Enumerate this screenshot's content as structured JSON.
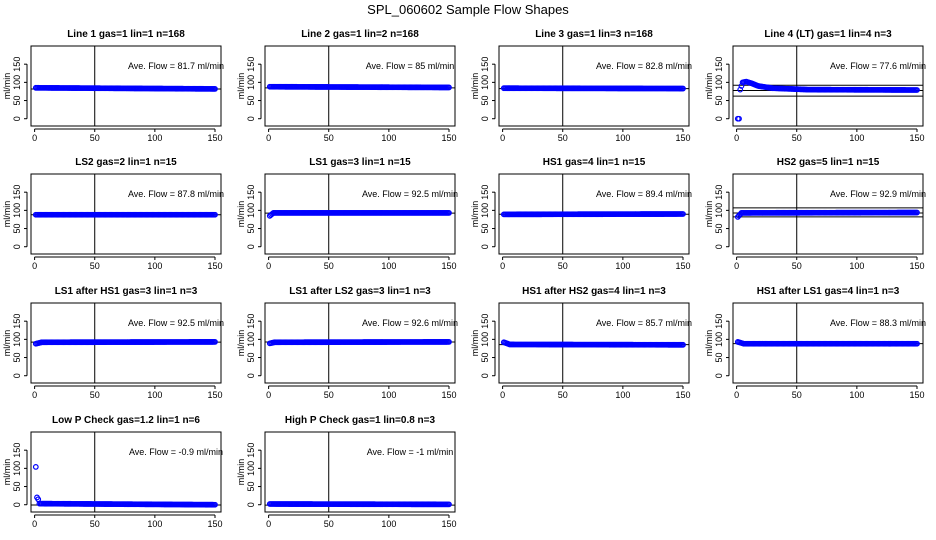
{
  "figure_title": "SPL_060602  Sample Flow Shapes",
  "chart_data": [
    {
      "type": "scatter",
      "title": "Line 1 gas=1 lin=1 n=168",
      "annotation": "Ave. Flow =  81.7  ml/min",
      "ylabel": "ml/min",
      "xlim": [
        -3,
        155
      ],
      "ylim": [
        -20,
        200
      ],
      "xticks": [
        0,
        50,
        100,
        150
      ],
      "yticks": [
        0,
        50,
        100,
        150
      ],
      "mean": 81.7,
      "vline": 50,
      "series": [
        {
          "x_range": [
            1,
            150
          ],
          "y": [
            [
              1,
              85
            ],
            [
              150,
              82
            ]
          ]
        }
      ]
    },
    {
      "type": "scatter",
      "title": "Line 2 gas=1 lin=2 n=168",
      "annotation": "Ave. Flow =  85  ml/min",
      "ylabel": "ml/min",
      "xlim": [
        -3,
        155
      ],
      "ylim": [
        -20,
        200
      ],
      "xticks": [
        0,
        50,
        100,
        150
      ],
      "yticks": [
        0,
        50,
        100,
        150
      ],
      "mean": 85,
      "vline": 50,
      "series": [
        {
          "x_range": [
            1,
            150
          ],
          "y": [
            [
              1,
              88
            ],
            [
              150,
              86
            ]
          ]
        }
      ]
    },
    {
      "type": "scatter",
      "title": "Line 3 gas=1 lin=3 n=168",
      "annotation": "Ave. Flow =  82.8  ml/min",
      "ylabel": "ml/min",
      "xlim": [
        -3,
        155
      ],
      "ylim": [
        -20,
        200
      ],
      "xticks": [
        0,
        50,
        100,
        150
      ],
      "yticks": [
        0,
        50,
        100,
        150
      ],
      "mean": 82.8,
      "vline": 50,
      "series": [
        {
          "x_range": [
            1,
            150
          ],
          "y": [
            [
              1,
              84
            ],
            [
              150,
              83
            ]
          ]
        }
      ]
    },
    {
      "type": "scatter",
      "title": "Line 4 (LT) gas=1 lin=4 n=3",
      "annotation": "Ave. Flow =  77.6  ml/min",
      "ylabel": "ml/min",
      "xlim": [
        -3,
        155
      ],
      "ylim": [
        -20,
        200
      ],
      "xticks": [
        0,
        50,
        100,
        150
      ],
      "yticks": [
        0,
        50,
        100,
        150
      ],
      "mean": 77.6,
      "vline": 50,
      "hlines": [
        62,
        92
      ],
      "series": [
        {
          "x_range": [
            1,
            150
          ],
          "y": [
            [
              1,
              0
            ],
            [
              2,
              0
            ],
            [
              3,
              80
            ],
            [
              5,
              100
            ],
            [
              8,
              102
            ],
            [
              12,
              98
            ],
            [
              18,
              90
            ],
            [
              30,
              84
            ],
            [
              60,
              80
            ],
            [
              150,
              79
            ]
          ]
        }
      ]
    },
    {
      "type": "scatter",
      "title": "LS2 gas=2 lin=1 n=15",
      "annotation": "Ave. Flow =  87.8  ml/min",
      "ylabel": "ml/min",
      "xlim": [
        -3,
        155
      ],
      "ylim": [
        -20,
        200
      ],
      "xticks": [
        0,
        50,
        100,
        150
      ],
      "yticks": [
        0,
        50,
        100,
        150
      ],
      "mean": 87.8,
      "vline": 50,
      "series": [
        {
          "x_range": [
            1,
            150
          ],
          "y": [
            [
              1,
              88
            ],
            [
              150,
              88
            ]
          ]
        }
      ]
    },
    {
      "type": "scatter",
      "title": "LS1 gas=3 lin=1 n=15",
      "annotation": "Ave. Flow =  92.5  ml/min",
      "ylabel": "ml/min",
      "xlim": [
        -3,
        155
      ],
      "ylim": [
        -20,
        200
      ],
      "xticks": [
        0,
        50,
        100,
        150
      ],
      "yticks": [
        0,
        50,
        100,
        150
      ],
      "mean": 92.5,
      "vline": 50,
      "series": [
        {
          "x_range": [
            1,
            150
          ],
          "y": [
            [
              1,
              85
            ],
            [
              4,
              93
            ],
            [
              150,
              93
            ]
          ]
        }
      ]
    },
    {
      "type": "scatter",
      "title": "HS1 gas=4 lin=1 n=15",
      "annotation": "Ave. Flow =  89.4  ml/min",
      "ylabel": "ml/min",
      "xlim": [
        -3,
        155
      ],
      "ylim": [
        -20,
        200
      ],
      "xticks": [
        0,
        50,
        100,
        150
      ],
      "yticks": [
        0,
        50,
        100,
        150
      ],
      "mean": 89.4,
      "vline": 50,
      "series": [
        {
          "x_range": [
            1,
            150
          ],
          "y": [
            [
              1,
              89
            ],
            [
              150,
              90
            ]
          ]
        }
      ]
    },
    {
      "type": "scatter",
      "title": "HS2 gas=5 lin=1 n=15",
      "annotation": "Ave. Flow =  92.9  ml/min",
      "ylabel": "ml/min",
      "xlim": [
        -3,
        155
      ],
      "ylim": [
        -20,
        200
      ],
      "xticks": [
        0,
        50,
        100,
        150
      ],
      "yticks": [
        0,
        50,
        100,
        150
      ],
      "mean": 92.9,
      "vline": 50,
      "hlines": [
        82,
        107
      ],
      "series": [
        {
          "x_range": [
            1,
            150
          ],
          "y": [
            [
              1,
              82
            ],
            [
              4,
              93
            ],
            [
              150,
              94
            ]
          ]
        }
      ]
    },
    {
      "type": "scatter",
      "title": "LS1 after HS1 gas=3 lin=1 n=3",
      "annotation": "Ave. Flow =  92.5  ml/min",
      "ylabel": "ml/min",
      "xlim": [
        -3,
        155
      ],
      "ylim": [
        -20,
        200
      ],
      "xticks": [
        0,
        50,
        100,
        150
      ],
      "yticks": [
        0,
        50,
        100,
        150
      ],
      "mean": 92.5,
      "vline": 50,
      "series": [
        {
          "x_range": [
            1,
            150
          ],
          "y": [
            [
              1,
              88
            ],
            [
              6,
              92
            ],
            [
              150,
              93
            ]
          ]
        }
      ]
    },
    {
      "type": "scatter",
      "title": "LS1 after LS2 gas=3 lin=1 n=3",
      "annotation": "Ave. Flow =  92.6  ml/min",
      "ylabel": "ml/min",
      "xlim": [
        -3,
        155
      ],
      "ylim": [
        -20,
        200
      ],
      "xticks": [
        0,
        50,
        100,
        150
      ],
      "yticks": [
        0,
        50,
        100,
        150
      ],
      "mean": 92.6,
      "vline": 50,
      "series": [
        {
          "x_range": [
            1,
            150
          ],
          "y": [
            [
              1,
              89
            ],
            [
              5,
              92
            ],
            [
              150,
              93
            ]
          ]
        }
      ]
    },
    {
      "type": "scatter",
      "title": "HS1 after HS2 gas=4 lin=1 n=3",
      "annotation": "Ave. Flow =  85.7  ml/min",
      "ylabel": "ml/min",
      "xlim": [
        -3,
        155
      ],
      "ylim": [
        -20,
        200
      ],
      "xticks": [
        0,
        50,
        100,
        150
      ],
      "yticks": [
        0,
        50,
        100,
        150
      ],
      "mean": 85.7,
      "vline": 50,
      "series": [
        {
          "x_range": [
            1,
            150
          ],
          "y": [
            [
              1,
              92
            ],
            [
              6,
              86
            ],
            [
              150,
              85
            ]
          ]
        }
      ]
    },
    {
      "type": "scatter",
      "title": "HS1 after LS1 gas=4 lin=1 n=3",
      "annotation": "Ave. Flow =  88.3  ml/min",
      "ylabel": "ml/min",
      "xlim": [
        -3,
        155
      ],
      "ylim": [
        -20,
        200
      ],
      "xticks": [
        0,
        50,
        100,
        150
      ],
      "yticks": [
        0,
        50,
        100,
        150
      ],
      "mean": 88.3,
      "vline": 50,
      "series": [
        {
          "x_range": [
            1,
            150
          ],
          "y": [
            [
              1,
              93
            ],
            [
              6,
              88
            ],
            [
              150,
              88
            ]
          ]
        }
      ]
    },
    {
      "type": "scatter",
      "title": "Low P Check gas=1.2 lin=1 n=6",
      "annotation": "Ave. Flow =  -0.9  ml/min",
      "ylabel": "ml/min",
      "xlim": [
        -3,
        155
      ],
      "ylim": [
        -20,
        200
      ],
      "xticks": [
        0,
        50,
        100,
        150
      ],
      "yticks": [
        0,
        50,
        100,
        150
      ],
      "mean": -0.9,
      "vline": 50,
      "series": [
        {
          "x_range": [
            1,
            150
          ],
          "y": [
            [
              1,
              104
            ],
            [
              2,
              20
            ],
            [
              3,
              15
            ],
            [
              4,
              3
            ],
            [
              150,
              0
            ]
          ]
        }
      ]
    },
    {
      "type": "scatter",
      "title": "High P Check gas=1 lin=0.8 n=3",
      "annotation": "Ave. Flow =  -1  ml/min",
      "ylabel": "ml/min",
      "xlim": [
        -3,
        155
      ],
      "ylim": [
        -20,
        200
      ],
      "xticks": [
        0,
        50,
        100,
        150
      ],
      "yticks": [
        0,
        50,
        100,
        150
      ],
      "mean": -1,
      "vline": 50,
      "series": [
        {
          "x_range": [
            1,
            150
          ],
          "y": [
            [
              1,
              2
            ],
            [
              150,
              1
            ]
          ]
        }
      ]
    }
  ]
}
